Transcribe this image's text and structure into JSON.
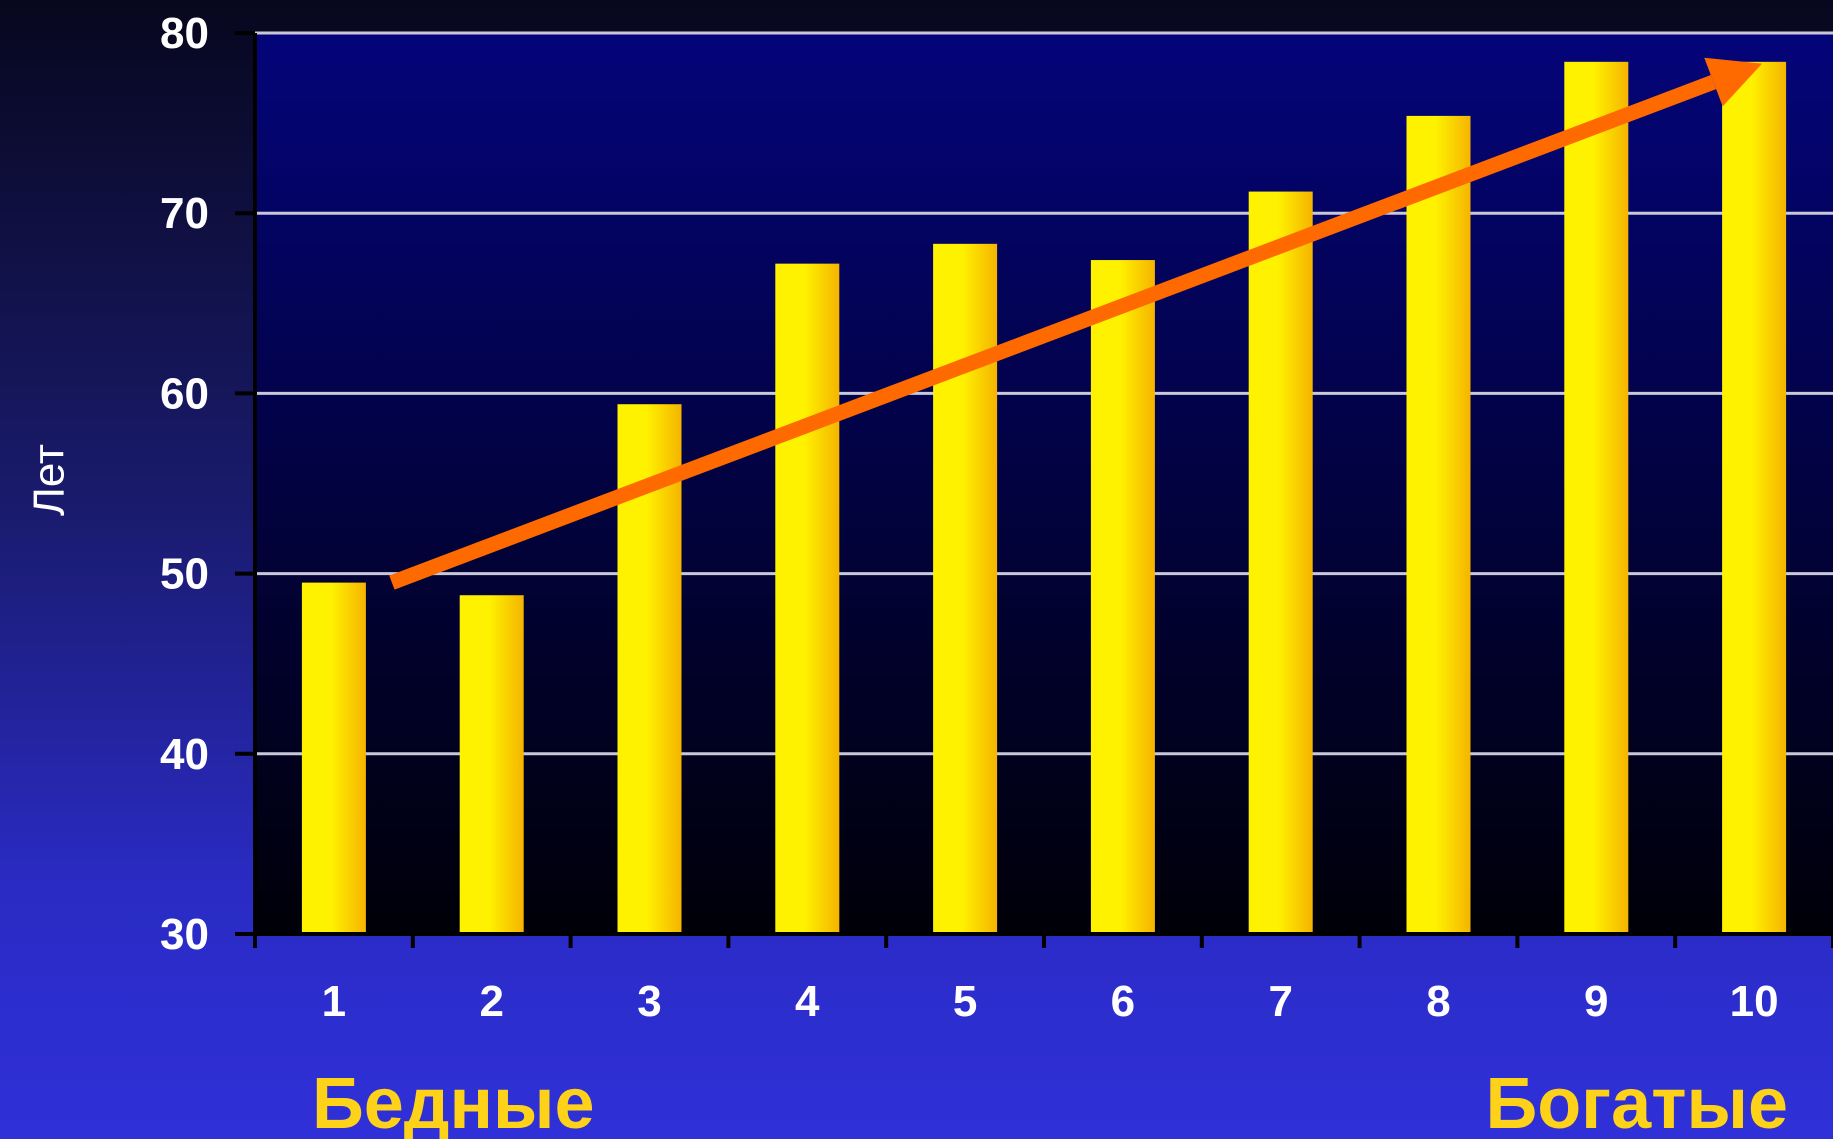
{
  "chart_data": {
    "type": "bar",
    "categories": [
      "1",
      "2",
      "3",
      "4",
      "5",
      "6",
      "7",
      "8",
      "9",
      "10"
    ],
    "values": [
      49.5,
      48.8,
      59.4,
      67.2,
      68.3,
      67.4,
      71.2,
      75.4,
      78.4,
      78.4
    ],
    "title": "",
    "xlabel": "",
    "ylabel": "Лет",
    "ylim": [
      30,
      80
    ],
    "yticks": [
      "30",
      "40",
      "50",
      "60",
      "70",
      "80"
    ],
    "grid": true,
    "annotations": {
      "left": "Бедные",
      "right": "Богатые"
    },
    "trend_arrow": {
      "from": {
        "x": "1",
        "y": 49.5
      },
      "to": {
        "x": "10",
        "y": 78.3
      }
    },
    "colors": {
      "bar_light": "#fff200",
      "bar_dark": "#f5b400",
      "arrow": "#ff6a00",
      "grid": "#c8c8d8",
      "plot_top": "#04047a",
      "plot_bottom": "#000008",
      "label_accent": "#ffd21a"
    }
  }
}
